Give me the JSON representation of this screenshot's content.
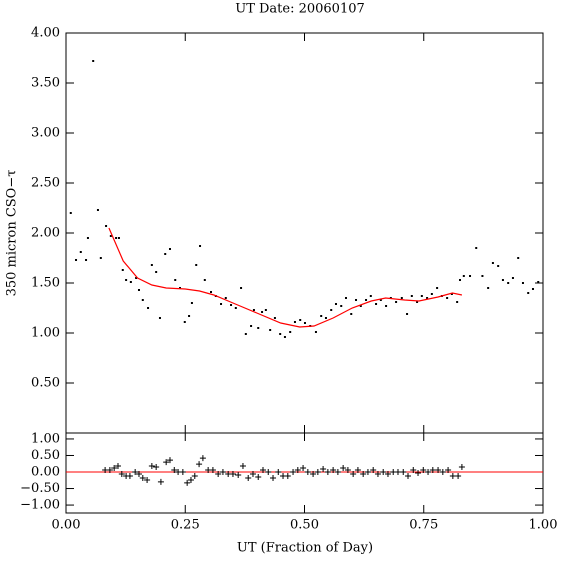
{
  "chart_data": [
    {
      "type": "scatter",
      "title": "UT Date: 20060107",
      "y_label": "350 micron CSO−τ",
      "xlim": [
        0,
        1
      ],
      "ylim": [
        0,
        4.0
      ],
      "yticks": [
        {
          "value": 0.5,
          "label": "0.50"
        },
        {
          "value": 1.0,
          "label": "1.00"
        },
        {
          "value": 1.5,
          "label": "1.50"
        },
        {
          "value": 2.0,
          "label": "2.00"
        },
        {
          "value": 2.5,
          "label": "2.50"
        },
        {
          "value": 3.0,
          "label": "3.00"
        },
        {
          "value": 3.5,
          "label": "3.50"
        },
        {
          "value": 4.0,
          "label": "4.00"
        }
      ],
      "series": [
        {
          "type": "scatter",
          "color": "#000000",
          "x": [
            0.01,
            0.021,
            0.031,
            0.042,
            0.046,
            0.057,
            0.067,
            0.073,
            0.084,
            0.094,
            0.105,
            0.111,
            0.119,
            0.126,
            0.136,
            0.147,
            0.153,
            0.161,
            0.172,
            0.18,
            0.189,
            0.197,
            0.208,
            0.218,
            0.229,
            0.239,
            0.249,
            0.258,
            0.264,
            0.273,
            0.281,
            0.291,
            0.304,
            0.314,
            0.325,
            0.335,
            0.346,
            0.356,
            0.367,
            0.377,
            0.388,
            0.394,
            0.403,
            0.411,
            0.419,
            0.428,
            0.438,
            0.449,
            0.459,
            0.47,
            0.48,
            0.491,
            0.501,
            0.512,
            0.524,
            0.535,
            0.545,
            0.556,
            0.566,
            0.577,
            0.587,
            0.598,
            0.608,
            0.618,
            0.629,
            0.639,
            0.65,
            0.66,
            0.671,
            0.681,
            0.692,
            0.704,
            0.715,
            0.725,
            0.736,
            0.746,
            0.757,
            0.767,
            0.778,
            0.788,
            0.799,
            0.809,
            0.82,
            0.826,
            0.834,
            0.847,
            0.86,
            0.873,
            0.885,
            0.895,
            0.906,
            0.916,
            0.927,
            0.937,
            0.948,
            0.958,
            0.969,
            0.979,
            0.99
          ],
          "values": [
            2.2,
            1.73,
            1.81,
            1.73,
            1.95,
            3.72,
            2.23,
            1.75,
            2.07,
            1.97,
            1.95,
            1.95,
            1.63,
            1.53,
            1.51,
            1.55,
            1.43,
            1.33,
            1.25,
            1.68,
            1.61,
            1.15,
            1.79,
            1.84,
            1.53,
            1.45,
            1.11,
            1.17,
            1.3,
            1.68,
            1.87,
            1.53,
            1.41,
            1.37,
            1.29,
            1.35,
            1.28,
            1.25,
            1.45,
            0.99,
            1.07,
            1.23,
            1.05,
            1.21,
            1.23,
            1.03,
            1.15,
            0.99,
            0.96,
            1.01,
            1.11,
            1.13,
            1.1,
            1.07,
            1.01,
            1.17,
            1.15,
            1.23,
            1.29,
            1.27,
            1.35,
            1.19,
            1.33,
            1.27,
            1.33,
            1.37,
            1.29,
            1.33,
            1.27,
            1.35,
            1.31,
            1.35,
            1.19,
            1.37,
            1.31,
            1.37,
            1.35,
            1.39,
            1.45,
            1.37,
            1.35,
            1.39,
            1.31,
            1.53,
            1.57,
            1.57,
            1.85,
            1.57,
            1.45,
            1.7,
            1.67,
            1.53,
            1.5,
            1.55,
            1.75,
            1.5,
            1.4,
            1.44,
            1.51
          ]
        },
        {
          "type": "line",
          "color": "#ff0000",
          "x": [
            0.09,
            0.12,
            0.15,
            0.18,
            0.21,
            0.25,
            0.28,
            0.31,
            0.35,
            0.4,
            0.45,
            0.49,
            0.52,
            0.56,
            0.6,
            0.64,
            0.67,
            0.71,
            0.74,
            0.78,
            0.81,
            0.83
          ],
          "values": [
            2.05,
            1.72,
            1.55,
            1.48,
            1.45,
            1.44,
            1.42,
            1.38,
            1.3,
            1.2,
            1.1,
            1.06,
            1.07,
            1.15,
            1.25,
            1.32,
            1.35,
            1.33,
            1.32,
            1.36,
            1.4,
            1.38
          ]
        }
      ]
    },
    {
      "type": "scatter",
      "x_label": "UT (Fraction of Day)",
      "marker": "plus",
      "xlim": [
        0,
        1
      ],
      "ylim": [
        -1.24,
        1.18
      ],
      "xticks": [
        {
          "value": 0,
          "label": "0.00"
        },
        {
          "value": 0.25,
          "label": "0.25"
        },
        {
          "value": 0.5,
          "label": "0.50"
        },
        {
          "value": 0.75,
          "label": "0.75"
        },
        {
          "value": 1,
          "label": "1.00"
        }
      ],
      "yticks": [
        {
          "value": -1,
          "label": "−1.00"
        },
        {
          "value": -0.5,
          "label": "−0.50"
        },
        {
          "value": 0,
          "label": "0.00"
        },
        {
          "value": 0.5,
          "label": "0.50"
        },
        {
          "value": 1,
          "label": "1.00"
        }
      ],
      "hline": {
        "value": 0,
        "color": "#ff0000"
      },
      "series": [
        {
          "type": "scatter",
          "color": "#000000",
          "x": [
            0.082,
            0.092,
            0.101,
            0.109,
            0.117,
            0.126,
            0.134,
            0.145,
            0.153,
            0.161,
            0.17,
            0.18,
            0.189,
            0.199,
            0.21,
            0.218,
            0.227,
            0.235,
            0.245,
            0.254,
            0.262,
            0.27,
            0.279,
            0.287,
            0.298,
            0.308,
            0.319,
            0.329,
            0.34,
            0.35,
            0.361,
            0.371,
            0.382,
            0.392,
            0.403,
            0.413,
            0.424,
            0.434,
            0.445,
            0.455,
            0.465,
            0.476,
            0.486,
            0.497,
            0.507,
            0.518,
            0.528,
            0.539,
            0.549,
            0.56,
            0.57,
            0.581,
            0.591,
            0.602,
            0.612,
            0.623,
            0.633,
            0.644,
            0.654,
            0.665,
            0.675,
            0.686,
            0.696,
            0.707,
            0.717,
            0.728,
            0.738,
            0.749,
            0.759,
            0.769,
            0.78,
            0.79,
            0.801,
            0.811,
            0.822,
            0.83
          ],
          "values": [
            0.06,
            0.06,
            0.12,
            0.18,
            -0.06,
            -0.12,
            -0.12,
            0.0,
            -0.06,
            -0.18,
            -0.24,
            0.18,
            0.15,
            -0.3,
            0.3,
            0.36,
            0.06,
            0.0,
            0.0,
            -0.33,
            -0.24,
            -0.12,
            0.24,
            0.42,
            0.06,
            0.06,
            -0.06,
            0.0,
            -0.06,
            -0.06,
            -0.09,
            0.18,
            -0.18,
            -0.06,
            -0.15,
            0.06,
            0.0,
            -0.18,
            0.0,
            -0.12,
            -0.12,
            0.0,
            0.06,
            0.12,
            0.0,
            -0.06,
            0.0,
            0.09,
            0.0,
            0.06,
            0.0,
            0.12,
            0.06,
            -0.06,
            0.06,
            -0.06,
            0.0,
            0.06,
            -0.06,
            0.0,
            -0.06,
            0.0,
            0.0,
            0.0,
            -0.12,
            0.06,
            -0.03,
            0.06,
            0.0,
            0.06,
            0.06,
            0.0,
            0.06,
            -0.12,
            -0.12,
            0.15
          ]
        }
      ]
    }
  ]
}
